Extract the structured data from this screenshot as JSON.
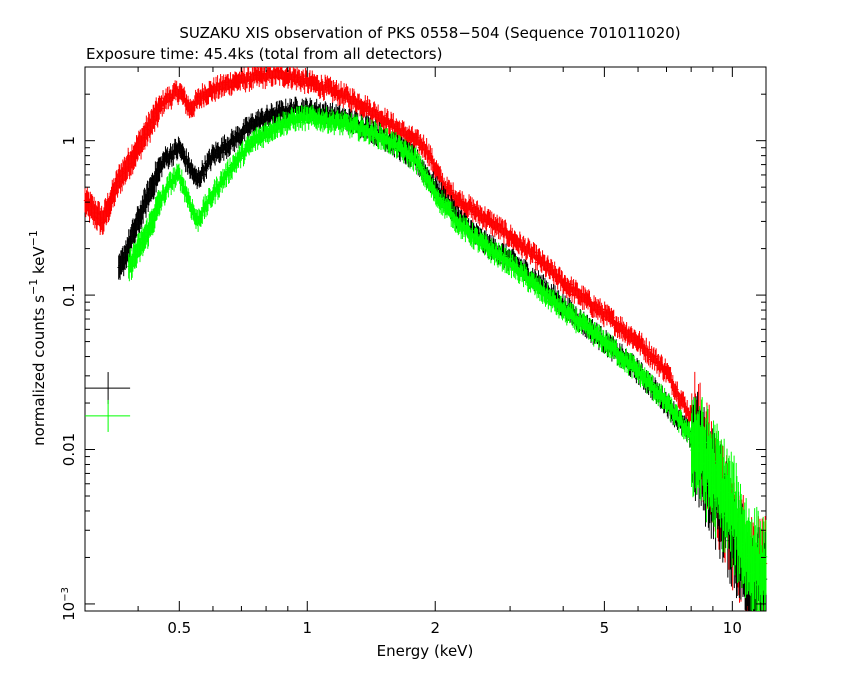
{
  "chart_data": {
    "type": "scatter",
    "title": "SUZAKU XIS observation of PKS 0558−504 (Sequence 701011020)",
    "subtitle": "Exposure time: 45.4ks (total from all detectors)",
    "xlabel": "Energy (keV)",
    "ylabel": "normalized counts s",
    "ylabel_sup1": "−1",
    "ylabel_mid": " keV",
    "ylabel_sup2": "−1",
    "x_scale": "log",
    "y_scale": "log",
    "xlim": [
      0.3,
      12.0
    ],
    "ylim": [
      0.0009,
      3.0
    ],
    "x_ticks": [
      {
        "value": 0.5,
        "label": "0.5"
      },
      {
        "value": 1,
        "label": "1"
      },
      {
        "value": 2,
        "label": "2"
      },
      {
        "value": 5,
        "label": "5"
      },
      {
        "value": 10,
        "label": "10"
      }
    ],
    "y_ticks": [
      {
        "value": 1,
        "label": "1",
        "sup": ""
      },
      {
        "value": 0.1,
        "label": "0.1",
        "sup": ""
      },
      {
        "value": 0.01,
        "label": "0.01",
        "sup": ""
      },
      {
        "value": 0.001,
        "label": "10",
        "sup": "−3"
      }
    ],
    "grid": false,
    "legend": "none",
    "series": [
      {
        "color": "#ff0000",
        "x": [
          0.3,
          0.33,
          0.36,
          0.4,
          0.43,
          0.46,
          0.5,
          0.53,
          0.57,
          0.62,
          0.67,
          0.72,
          0.78,
          0.85,
          0.92,
          1.0,
          1.1,
          1.2,
          1.35,
          1.5,
          1.7,
          1.9,
          2.1,
          2.3,
          2.6,
          3.0,
          3.5,
          4.0,
          5.0,
          6.0,
          7.0,
          8.0,
          9.0,
          10.0,
          11.0,
          12.0
        ],
        "y": [
          0.4,
          0.3,
          0.55,
          0.9,
          1.3,
          1.8,
          2.1,
          1.6,
          2.0,
          2.2,
          2.4,
          2.5,
          2.6,
          2.7,
          2.6,
          2.4,
          2.2,
          2.0,
          1.7,
          1.4,
          1.1,
          0.9,
          0.5,
          0.4,
          0.32,
          0.24,
          0.17,
          0.12,
          0.075,
          0.05,
          0.032,
          0.016,
          0.007,
          0.003,
          0.0018,
          0.0015
        ]
      },
      {
        "color": "#000000",
        "x": [
          0.36,
          0.4,
          0.43,
          0.46,
          0.5,
          0.55,
          0.6,
          0.67,
          0.75,
          0.85,
          0.95,
          1.05,
          1.2,
          1.4,
          1.6,
          1.8,
          2.0,
          2.3,
          2.6,
          3.0,
          3.5,
          4.0,
          5.0,
          6.0,
          7.0,
          8.0,
          9.0,
          10.0,
          11.0,
          12.0
        ],
        "y": [
          0.14,
          0.3,
          0.5,
          0.75,
          0.9,
          0.55,
          0.8,
          1.0,
          1.3,
          1.5,
          1.6,
          1.55,
          1.4,
          1.2,
          0.95,
          0.75,
          0.5,
          0.3,
          0.22,
          0.17,
          0.12,
          0.085,
          0.05,
          0.032,
          0.02,
          0.012,
          0.006,
          0.003,
          0.0015,
          0.0012
        ]
      },
      {
        "color": "#00ff00",
        "x": [
          0.38,
          0.42,
          0.45,
          0.48,
          0.5,
          0.55,
          0.6,
          0.67,
          0.75,
          0.85,
          0.95,
          1.05,
          1.2,
          1.4,
          1.6,
          1.8,
          2.0,
          2.3,
          2.6,
          3.0,
          3.5,
          4.0,
          5.0,
          6.0,
          7.0,
          8.0,
          9.0,
          10.0,
          11.0,
          12.0
        ],
        "y": [
          0.15,
          0.25,
          0.4,
          0.55,
          0.6,
          0.3,
          0.45,
          0.7,
          1.0,
          1.25,
          1.4,
          1.4,
          1.3,
          1.15,
          0.95,
          0.75,
          0.45,
          0.28,
          0.21,
          0.16,
          0.11,
          0.08,
          0.05,
          0.032,
          0.02,
          0.012,
          0.007,
          0.004,
          0.002,
          0.0015
        ]
      }
    ],
    "annotations": [
      {
        "color": "#000000",
        "x": 0.34,
        "y": 0.025
      },
      {
        "color": "#00ff00",
        "x": 0.34,
        "y": 0.0165
      }
    ]
  }
}
